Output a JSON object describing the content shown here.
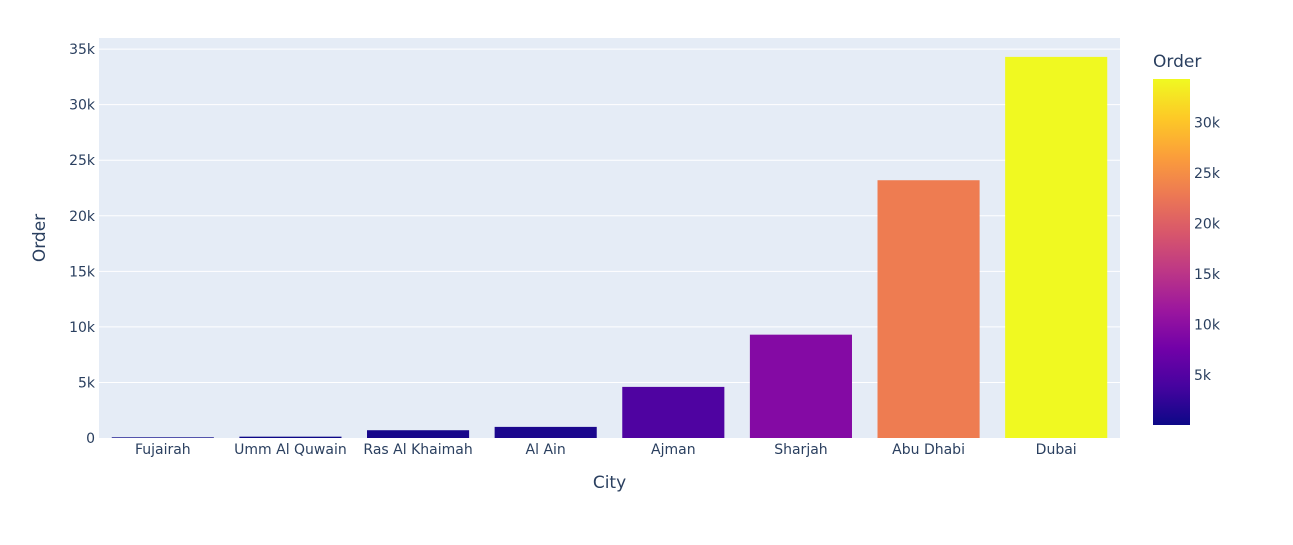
{
  "chart_data": {
    "type": "bar",
    "title": "",
    "xlabel": "City",
    "ylabel": "Order",
    "categories": [
      "Fujairah",
      "Umm Al Quwain",
      "Ras Al Khaimah",
      "Al Ain",
      "Ajman",
      "Sharjah",
      "Abu Dhabi",
      "Dubai"
    ],
    "values": [
      60,
      120,
      700,
      1000,
      4600,
      9300,
      23200,
      34300
    ],
    "ylim": [
      0,
      36000
    ],
    "yticks": [
      0,
      5000,
      10000,
      15000,
      20000,
      25000,
      30000,
      35000
    ],
    "ytick_labels": [
      "0",
      "5k",
      "10k",
      "15k",
      "20k",
      "25k",
      "30k",
      "35k"
    ],
    "grid": true,
    "plot_background": "#e5ecf6",
    "colorscale": "plasma",
    "colorscale_stops": [
      "#0d0887",
      "#46039f",
      "#7201a8",
      "#9c179e",
      "#bd3786",
      "#d8576b",
      "#ed7953",
      "#fb9f3a",
      "#fdca26",
      "#f0f921"
    ],
    "colorbar": {
      "title": "Order",
      "ticks": [
        5000,
        10000,
        15000,
        20000,
        25000,
        30000
      ],
      "tick_labels": [
        "5k",
        "10k",
        "15k",
        "20k",
        "25k",
        "30k"
      ]
    }
  }
}
